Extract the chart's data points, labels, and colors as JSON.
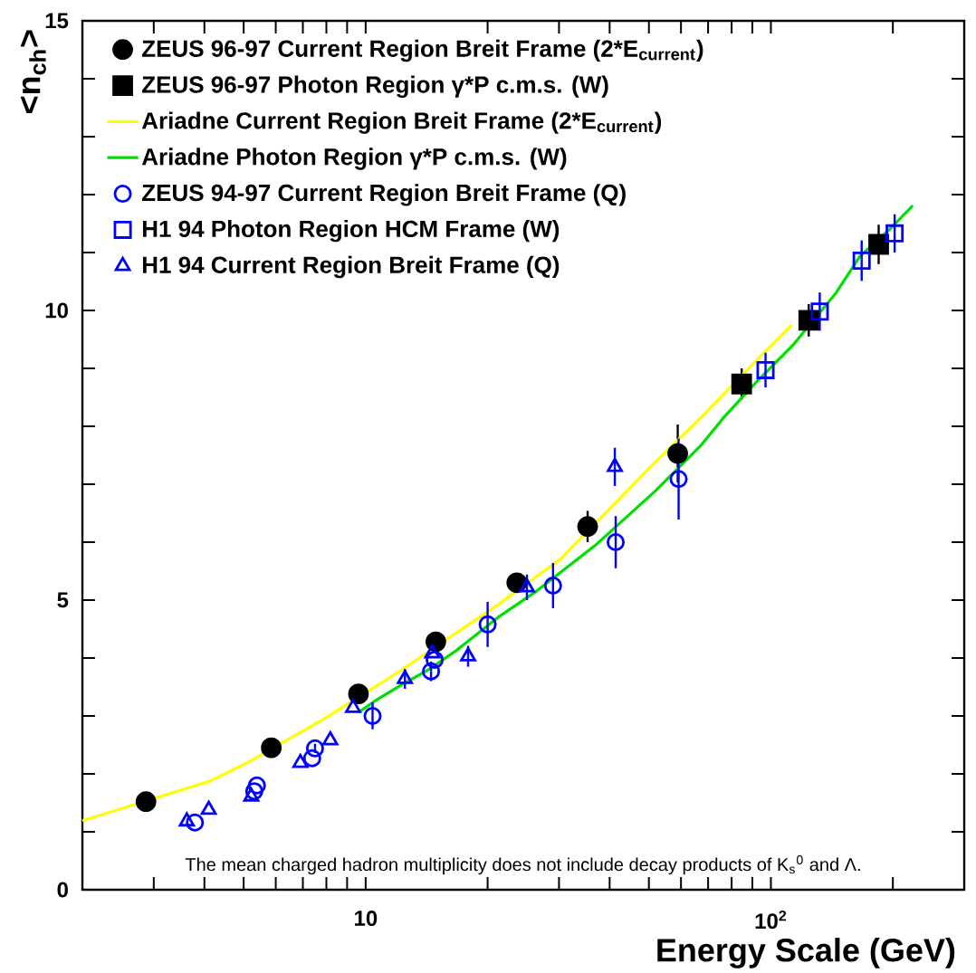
{
  "chart_data": {
    "type": "scatter",
    "log": "x",
    "legend": "top left",
    "grid": false,
    "xlabel": "Energy Scale (GeV)",
    "ylabel": "<n$_{ch}$>",
    "xlim": [
      2,
      300
    ],
    "ylim": [
      0,
      15
    ],
    "xticks": [
      {
        "value": 2,
        "label": null
      },
      {
        "value": 3,
        "label": null
      },
      {
        "value": 4,
        "label": null
      },
      {
        "value": 5,
        "label": null
      },
      {
        "value": 6,
        "label": null
      },
      {
        "value": 7,
        "label": null
      },
      {
        "value": 8,
        "label": null
      },
      {
        "value": 9,
        "label": null
      },
      10,
      {
        "value": 20,
        "label": null
      },
      {
        "value": 30,
        "label": null
      },
      {
        "value": 40,
        "label": null
      },
      {
        "value": 50,
        "label": null
      },
      {
        "value": 60,
        "label": null
      },
      {
        "value": 70,
        "label": null
      },
      {
        "value": 80,
        "label": null
      },
      {
        "value": 90,
        "label": null
      },
      {
        "value": 100,
        "label": "10$^{2}$"
      },
      {
        "value": 200,
        "label": null
      },
      {
        "value": 300,
        "label": null
      }
    ],
    "yticks": [
      0,
      {
        "value": 1,
        "label": null
      },
      {
        "value": 2,
        "label": null
      },
      {
        "value": 3,
        "label": null
      },
      {
        "value": 4,
        "label": null
      },
      5,
      {
        "value": 6,
        "label": null
      },
      {
        "value": 7,
        "label": null
      },
      {
        "value": 8,
        "label": null
      },
      {
        "value": 9,
        "label": null
      },
      10,
      {
        "value": 11,
        "label": null
      },
      {
        "value": 12,
        "label": null
      },
      {
        "value": 13,
        "label": null
      },
      {
        "value": 14,
        "label": null
      },
      15
    ],
    "annotations": [
      "The mean charged hadron multiplicity does not include decay products of K$_{s}$$^{0}$ and Λ."
    ],
    "series": [
      {
        "name": "ZEUS 96-97 Current Region Breit Frame (2*E$_{current}$)",
        "color": "#000000",
        "marker": "circle",
        "x": [
          2.87,
          5.85,
          9.6,
          14.9,
          23.6,
          35.3,
          58.9
        ],
        "values": [
          1.52,
          2.45,
          3.38,
          4.28,
          5.3,
          6.27,
          7.53
        ],
        "errors": [
          null,
          null,
          0.1,
          0.1,
          0.12,
          0.27,
          0.5
        ]
      },
      {
        "name": "ZEUS 96-97 Photon Region γ*P c.m.s. (W)",
        "color": "#000000",
        "marker": "square",
        "x": [
          84.7,
          124,
          184.5
        ],
        "values": [
          8.73,
          9.83,
          11.14
        ],
        "errors": [
          0.27,
          0.28,
          0.34
        ]
      },
      {
        "name": "Ariadne Current Region Breit Frame (2*E$_{current}$)",
        "type": "line",
        "color": "#ffff00",
        "marker": "none",
        "x": [
          2.0,
          4.14,
          5.09,
          7.85,
          12.0,
          21.2,
          30.4,
          50.1,
          67.6,
          94.6,
          112.5
        ],
        "values": [
          1.19,
          1.88,
          2.19,
          2.94,
          3.75,
          4.92,
          5.72,
          7.28,
          8.17,
          9.22,
          9.75
        ]
      },
      {
        "name": "Ariadne Photon Region γ*P c.m.s. (W)",
        "type": "line",
        "color": "#00e000",
        "marker": "none",
        "x": [
          9.6,
          10.5,
          12.2,
          14.3,
          16.6,
          21.2,
          26.1,
          36.8,
          51.8,
          67.0,
          76.9,
          93.1,
          114,
          145,
          166,
          197,
          224
        ],
        "values": [
          3.06,
          3.25,
          3.53,
          3.8,
          4.11,
          4.7,
          5.13,
          5.94,
          6.88,
          7.66,
          8.17,
          8.8,
          9.42,
          10.31,
          10.94,
          11.41,
          11.81
        ]
      },
      {
        "name": "ZEUS 94-97 Current Region Breit Frame (Q)",
        "color": "#0000ff",
        "marker": "circle",
        "x": [
          3.79,
          5.31,
          5.39,
          7.38,
          7.5,
          10.4,
          14.5,
          14.8,
          20.0,
          29.0,
          41.4,
          59.2
        ],
        "values": [
          1.16,
          1.7,
          1.8,
          2.27,
          2.44,
          3.0,
          3.77,
          3.97,
          4.58,
          5.25,
          6.0,
          7.09
        ],
        "errors": [
          null,
          null,
          null,
          null,
          0.08,
          0.23,
          0.17,
          null,
          0.39,
          0.39,
          0.45,
          0.7
        ]
      },
      {
        "name": "H1 94  Photon Region HCM Frame (W)",
        "color": "#0000ff",
        "marker": "square",
        "x": [
          97,
          132,
          167.5,
          202
        ],
        "values": [
          8.97,
          9.98,
          10.86,
          11.33
        ],
        "errors": [
          0.3,
          0.33,
          0.35,
          0.33
        ]
      },
      {
        "name": "H1 94  Current Region Breit Frame (Q)",
        "color": "#0000ff",
        "marker": "triangle",
        "x": [
          3.62,
          4.1,
          5.22,
          6.9,
          8.18,
          9.31,
          12.5,
          14.6,
          17.9,
          25.0,
          41.2
        ],
        "values": [
          1.18,
          1.38,
          1.61,
          2.19,
          2.58,
          3.14,
          3.64,
          4.08,
          4.03,
          5.22,
          7.3
        ],
        "errors": [
          null,
          null,
          null,
          null,
          null,
          null,
          0.17,
          null,
          0.18,
          0.22,
          0.33
        ]
      }
    ]
  }
}
